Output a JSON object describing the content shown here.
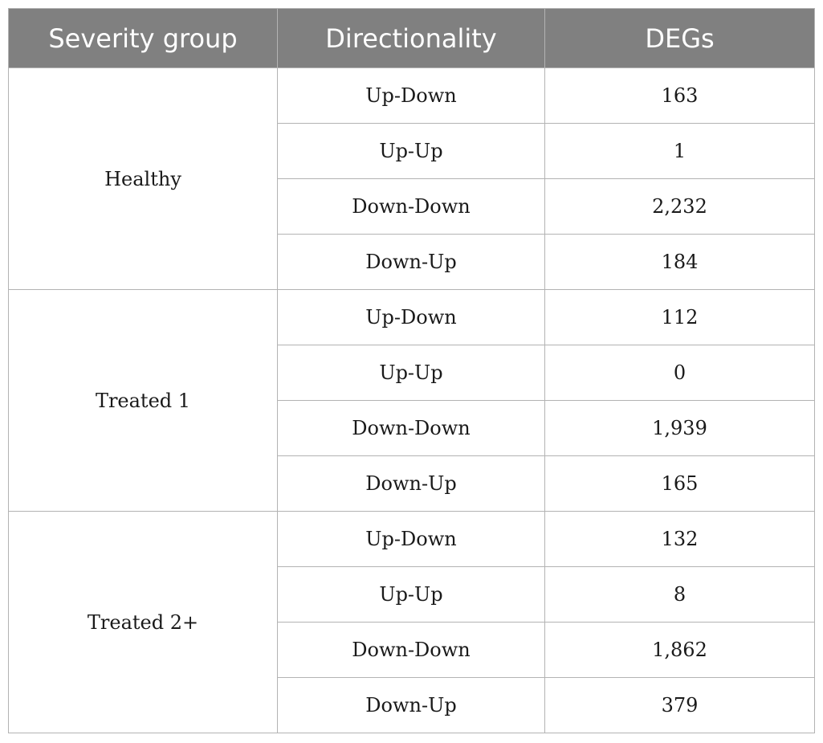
{
  "table": {
    "headers": [
      "Severity group",
      "Directionality",
      "DEGs"
    ],
    "groups": [
      {
        "name": "Healthy",
        "rows": [
          {
            "direction": "Up-Down",
            "degs": "163"
          },
          {
            "direction": "Up-Up",
            "degs": "1"
          },
          {
            "direction": "Down-Down",
            "degs": "2,232"
          },
          {
            "direction": "Down-Up",
            "degs": "184"
          }
        ]
      },
      {
        "name": "Treated 1",
        "rows": [
          {
            "direction": "Up-Down",
            "degs": "112"
          },
          {
            "direction": "Up-Up",
            "degs": "0"
          },
          {
            "direction": "Down-Down",
            "degs": "1,939"
          },
          {
            "direction": "Down-Up",
            "degs": "165"
          }
        ]
      },
      {
        "name": "Treated 2+",
        "rows": [
          {
            "direction": "Up-Down",
            "degs": "132"
          },
          {
            "direction": "Up-Up",
            "degs": "8"
          },
          {
            "direction": "Down-Down",
            "degs": "1,862"
          },
          {
            "direction": "Down-Up",
            "degs": "379"
          }
        ]
      }
    ]
  },
  "colors": {
    "header_bg": "#808080",
    "header_text": "#ffffff",
    "border": "#b3b3b3",
    "body_text": "#1a1a1a"
  }
}
